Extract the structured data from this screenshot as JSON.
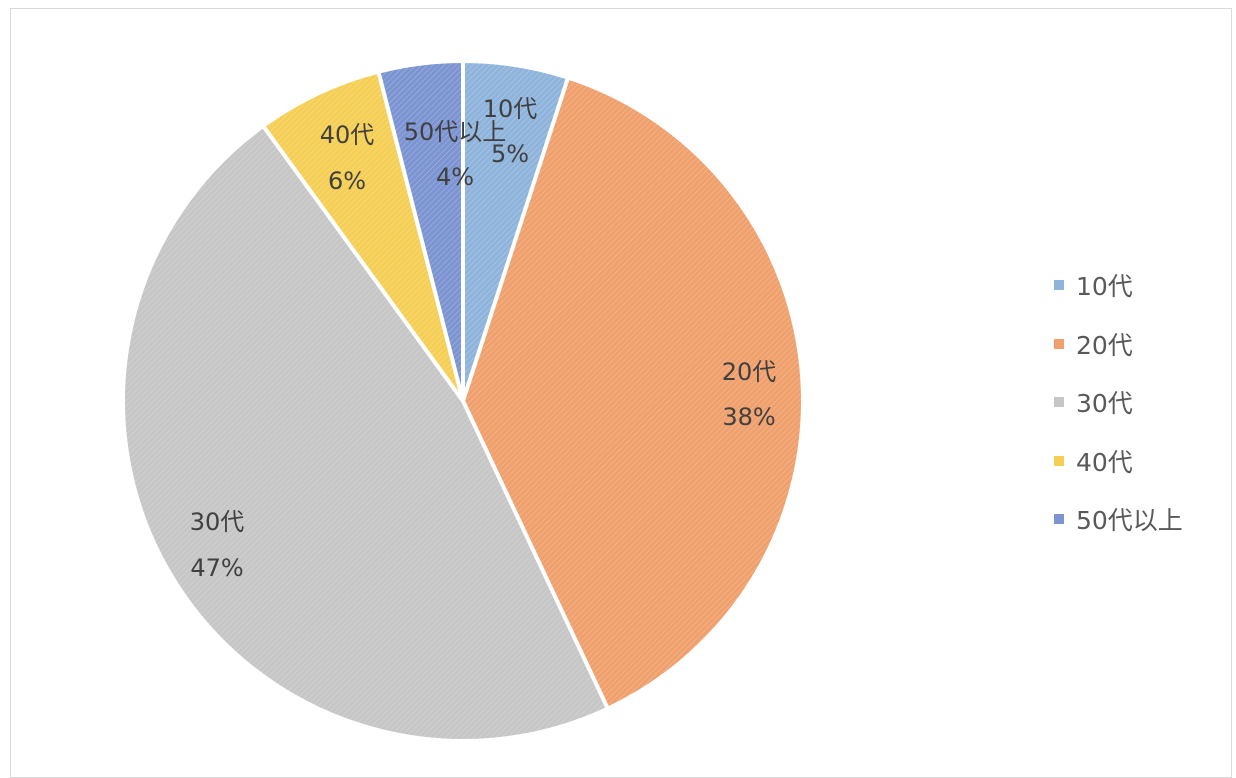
{
  "chart_data": {
    "type": "pie",
    "categories": [
      "10代",
      "20代",
      "30代",
      "40代",
      "50代以上"
    ],
    "values": [
      5,
      38,
      47,
      6,
      4
    ],
    "value_suffix": "%",
    "colors": [
      "#8fb4dc",
      "#efa06c",
      "#c6c6c6",
      "#f5cf55",
      "#7c94d2"
    ],
    "data_labels": [
      {
        "category": "10代",
        "value": "5%"
      },
      {
        "category": "20代",
        "value": "38%"
      },
      {
        "category": "30代",
        "value": "47%"
      },
      {
        "category": "40代",
        "value": "6%"
      },
      {
        "category": "50代以上",
        "value": "4%"
      }
    ],
    "legend_placement": "right",
    "start_angle_deg": 0,
    "direction": "clockwise",
    "title": ""
  }
}
